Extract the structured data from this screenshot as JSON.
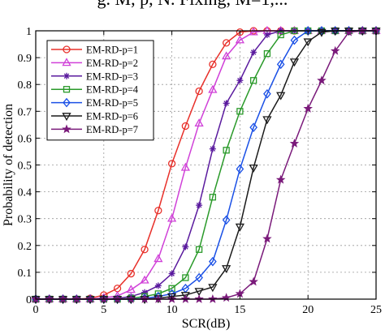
{
  "header": {
    "cut_title": "g. M, p, N. Fixing, M=1,..."
  },
  "chart_data": {
    "type": "line",
    "title": "",
    "xlabel": "SCR(dB)",
    "ylabel": "Probability of detection",
    "xlim": [
      0,
      25
    ],
    "ylim": [
      0,
      1
    ],
    "xticks": [
      0,
      5,
      10,
      15,
      20,
      25
    ],
    "yticks": [
      0,
      0.1,
      0.2,
      0.3,
      0.4,
      0.5,
      0.6,
      0.7,
      0.8,
      0.9,
      1
    ],
    "xtick_labels": [
      "0",
      "5",
      "10",
      "15",
      "20",
      "25"
    ],
    "ytick_labels": [
      "0",
      "0.1",
      "0.2",
      "0.3",
      "0.4",
      "0.5",
      "0.6",
      "0.7",
      "0.8",
      "0.9",
      "1"
    ],
    "grid": true,
    "legend_position": "top-left",
    "series": [
      {
        "name": "EM-RD-p=1",
        "color": "#e8302a",
        "marker": "circle",
        "x": [
          0,
          1,
          2,
          3,
          4,
          5,
          6,
          7,
          8,
          9,
          10,
          11,
          12,
          13,
          14,
          15,
          16,
          17,
          18,
          19,
          20,
          21,
          22,
          23,
          24,
          25
        ],
        "y": [
          0,
          0,
          0,
          0,
          0.003,
          0.015,
          0.04,
          0.095,
          0.185,
          0.33,
          0.505,
          0.645,
          0.775,
          0.875,
          0.955,
          0.995,
          1,
          1,
          1,
          1,
          1,
          1,
          1,
          1,
          1,
          1
        ]
      },
      {
        "name": "EM-RD-p=2",
        "color": "#d040d8",
        "marker": "triangle",
        "x": [
          0,
          1,
          2,
          3,
          4,
          5,
          6,
          7,
          8,
          9,
          10,
          11,
          12,
          13,
          14,
          15,
          16,
          17,
          18,
          19,
          20,
          21,
          22,
          23,
          24,
          25
        ],
        "y": [
          0,
          0,
          0,
          0,
          0,
          0.005,
          0.012,
          0.035,
          0.07,
          0.15,
          0.3,
          0.49,
          0.655,
          0.78,
          0.905,
          0.965,
          0.995,
          1,
          1,
          1,
          1,
          1,
          1,
          1,
          1,
          1
        ]
      },
      {
        "name": "EM-RD-p=3",
        "color": "#5a1a9e",
        "marker": "asterisk",
        "x": [
          0,
          1,
          2,
          3,
          4,
          5,
          6,
          7,
          8,
          9,
          10,
          11,
          12,
          13,
          14,
          15,
          16,
          17,
          18,
          19,
          20,
          21,
          22,
          23,
          24,
          25
        ],
        "y": [
          0,
          0,
          0,
          0,
          0,
          0,
          0.003,
          0.01,
          0.025,
          0.05,
          0.095,
          0.195,
          0.35,
          0.56,
          0.73,
          0.815,
          0.92,
          0.985,
          1,
          1,
          1,
          1,
          1,
          1,
          1,
          1
        ]
      },
      {
        "name": "EM-RD-p=4",
        "color": "#2a9a2a",
        "marker": "square",
        "x": [
          0,
          1,
          2,
          3,
          4,
          5,
          6,
          7,
          8,
          9,
          10,
          11,
          12,
          13,
          14,
          15,
          16,
          17,
          18,
          19,
          20,
          21,
          22,
          23,
          24,
          25
        ],
        "y": [
          0,
          0,
          0,
          0,
          0,
          0,
          0,
          0.003,
          0.01,
          0.02,
          0.04,
          0.08,
          0.185,
          0.38,
          0.555,
          0.7,
          0.815,
          0.915,
          0.985,
          1,
          1,
          1,
          1,
          1,
          1,
          1
        ]
      },
      {
        "name": "EM-RD-p=5",
        "color": "#1a50e6",
        "marker": "diamond",
        "x": [
          0,
          1,
          2,
          3,
          4,
          5,
          6,
          7,
          8,
          9,
          10,
          11,
          12,
          13,
          14,
          15,
          16,
          17,
          18,
          19,
          20,
          21,
          22,
          23,
          24,
          25
        ],
        "y": [
          0,
          0,
          0,
          0,
          0,
          0,
          0,
          0,
          0.003,
          0.01,
          0.02,
          0.04,
          0.08,
          0.14,
          0.295,
          0.485,
          0.64,
          0.765,
          0.875,
          0.965,
          1,
          1,
          1,
          1,
          1,
          1
        ]
      },
      {
        "name": "EM-RD-p=6",
        "color": "#1a1a1a",
        "marker": "triangle-down",
        "x": [
          0,
          1,
          2,
          3,
          4,
          5,
          6,
          7,
          8,
          9,
          10,
          11,
          12,
          13,
          14,
          15,
          16,
          17,
          18,
          19,
          20,
          21,
          22,
          23,
          24,
          25
        ],
        "y": [
          0,
          0,
          0,
          0,
          0,
          0,
          0,
          0,
          0,
          0.003,
          0.01,
          0.015,
          0.03,
          0.045,
          0.115,
          0.27,
          0.49,
          0.67,
          0.76,
          0.885,
          0.96,
          0.995,
          1,
          1,
          1,
          1
        ]
      },
      {
        "name": "EM-RD-p=7",
        "color": "#7a1a7a",
        "marker": "star",
        "x": [
          0,
          1,
          2,
          3,
          4,
          5,
          6,
          7,
          8,
          9,
          10,
          11,
          12,
          13,
          14,
          15,
          16,
          17,
          18,
          19,
          20,
          21,
          22,
          23,
          24,
          25
        ],
        "y": [
          0,
          0,
          0,
          0,
          0,
          0,
          0,
          0,
          0,
          0,
          0,
          0,
          0,
          0,
          0.005,
          0.02,
          0.065,
          0.225,
          0.445,
          0.58,
          0.71,
          0.815,
          0.925,
          0.995,
          1,
          1
        ]
      }
    ]
  }
}
